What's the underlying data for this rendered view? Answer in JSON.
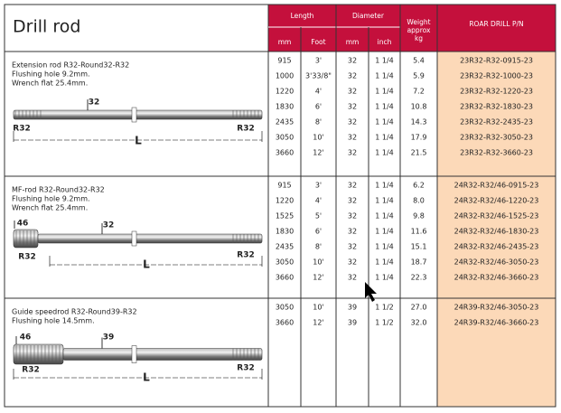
{
  "header": {
    "title": "Drill rod",
    "columns": {
      "length": "Length",
      "length_mm": "mm",
      "length_foot": "Foot",
      "diameter": "Diameter",
      "diameter_mm": "mm",
      "diameter_inch": "inch",
      "weight": [
        "Weight",
        "approx",
        "kg"
      ],
      "part_number": "ROAR DRILL  P/N"
    }
  },
  "sections": [
    {
      "description": [
        "Extension rod  R32-Round32-R32",
        "Flushing hole 9.2mm.",
        "Wrench flat 25.4mm."
      ],
      "drawing": {
        "rod_diameter": "32",
        "left_thread": "R32",
        "right_thread": "R32",
        "length": "L"
      },
      "rows": [
        [
          "915",
          "3'",
          "32",
          "1 1/4",
          "5.4",
          "23R32-R32-0915-23"
        ],
        [
          "1000",
          "3'33/8\"",
          "32",
          "1 1/4",
          "5.9",
          "23R32-R32-1000-23"
        ],
        [
          "1220",
          "4'",
          "32",
          "1 1/4",
          "7.2",
          "23R32-R32-1220-23"
        ],
        [
          "1830",
          "6'",
          "32",
          "1 1/4",
          "10.8",
          "23R32-R32-1830-23"
        ],
        [
          "2435",
          "8'",
          "32",
          "1 1/4",
          "14.3",
          "23R32-R32-2435-23"
        ],
        [
          "3050",
          "10'",
          "32",
          "1 1/4",
          "17.9",
          "23R32-R32-3050-23"
        ],
        [
          "3660",
          "12'",
          "32",
          "1 1/4",
          "21.5",
          "23R32-R32-3660-23"
        ]
      ]
    },
    {
      "description": [
        "MF-rod  R32-Round32-R32",
        "Flushing hole 9.2mm.",
        "Wrench flat 25.4mm."
      ],
      "drawing": {
        "sleeve_diameter": "46",
        "rod_diameter": "32",
        "left_thread": "R32",
        "right_thread": "R32",
        "length": "L"
      },
      "rows": [
        [
          "915",
          "3'",
          "32",
          "1 1/4",
          "6.2",
          "24R32-R32/46-0915-23"
        ],
        [
          "1220",
          "4'",
          "32",
          "1 1/4",
          "8.0",
          "24R32-R32/46-1220-23"
        ],
        [
          "1525",
          "5'",
          "32",
          "1 1/4",
          "9.8",
          "24R32-R32/46-1525-23"
        ],
        [
          "1830",
          "6'",
          "32",
          "1 1/4",
          "11.6",
          "24R32-R32/46-1830-23"
        ],
        [
          "2435",
          "8'",
          "32",
          "1 1/4",
          "15.1",
          "24R32-R32/46-2435-23"
        ],
        [
          "3050",
          "10'",
          "32",
          "1 1/4",
          "18.7",
          "24R32-R32/46-3050-23"
        ],
        [
          "3660",
          "12'",
          "32",
          "1 1/4",
          "22.3",
          "24R32-R32/46-3660-23"
        ]
      ]
    },
    {
      "description": [
        "Guide speedrod  R32-Round39-R32",
        "Flushing hole 14.5mm."
      ],
      "drawing": {
        "sleeve_diameter": "46",
        "rod_diameter": "39",
        "left_thread": "R32",
        "right_thread": "R32",
        "length": "L"
      },
      "rows": [
        [
          "3050",
          "10'",
          "39",
          "1 1/2",
          "27.0",
          "24R39-R32/46-3050-23"
        ],
        [
          "3660",
          "12'",
          "39",
          "1 1/2",
          "32.0",
          "24R39-R32/46-3660-23"
        ]
      ]
    }
  ]
}
